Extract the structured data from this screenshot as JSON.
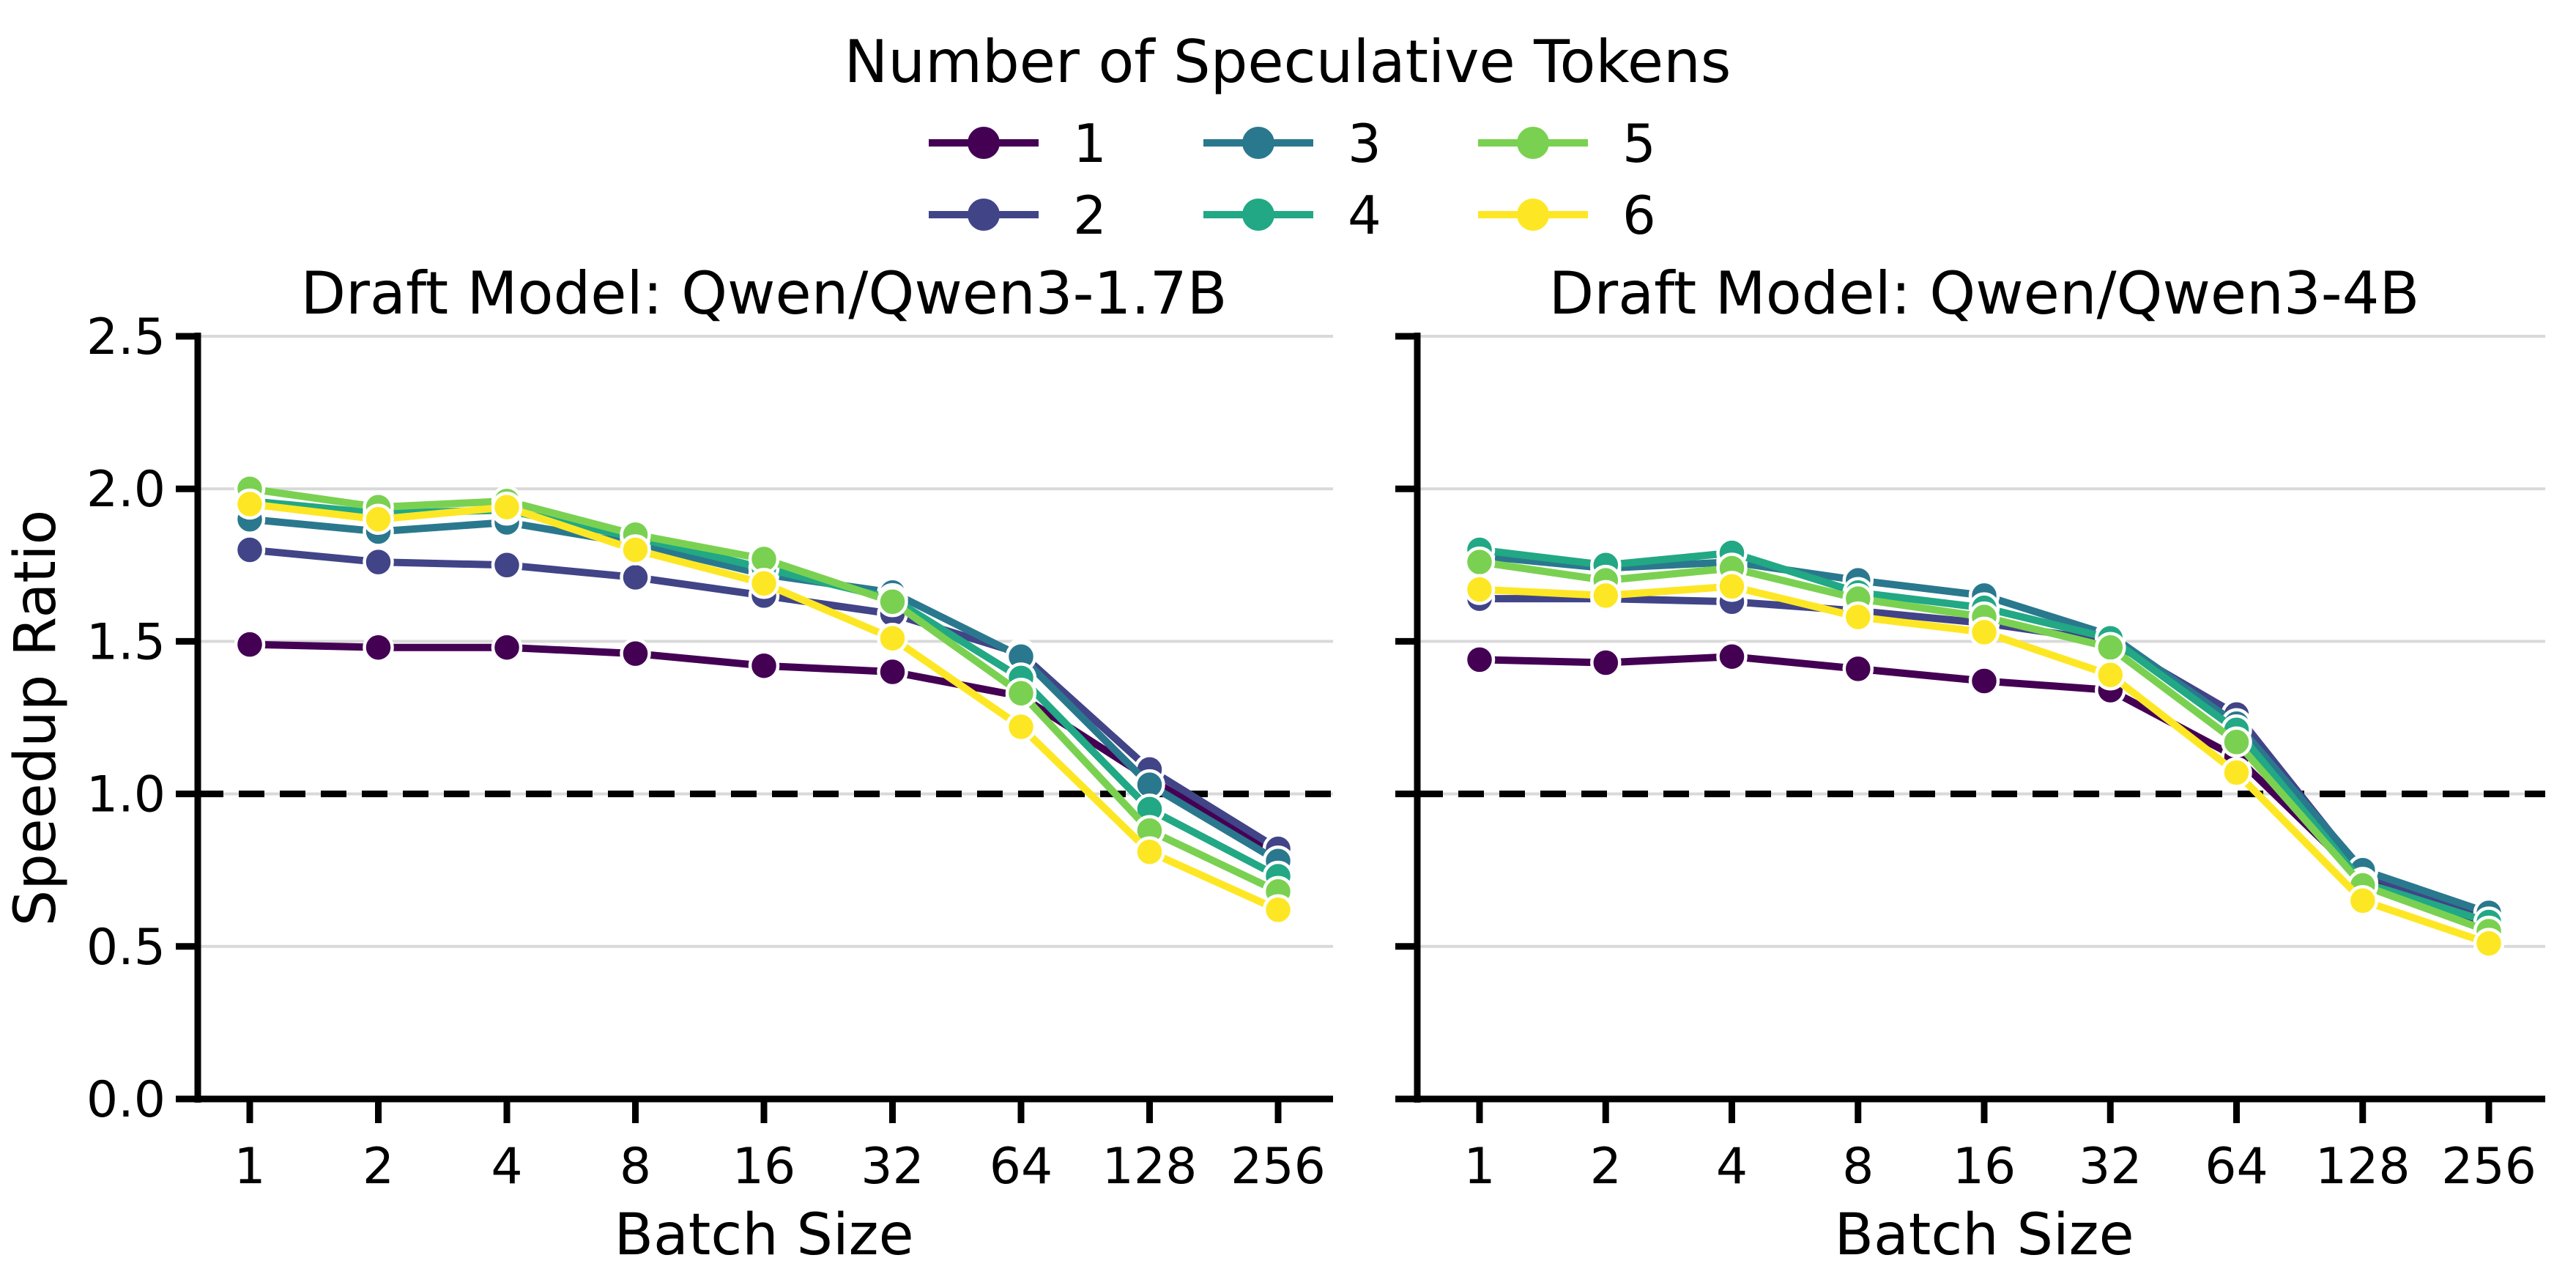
{
  "figure": {
    "background": "#ffffff",
    "text_color": "#000000",
    "grid_color": "#d9d9d9",
    "reference_line_color": "#000000",
    "legend": {
      "title": "Number of Speculative Tokens",
      "entries": [
        {
          "label": "1",
          "color": "#440154"
        },
        {
          "label": "2",
          "color": "#414487"
        },
        {
          "label": "3",
          "color": "#2a788e"
        },
        {
          "label": "4",
          "color": "#22a884"
        },
        {
          "label": "5",
          "color": "#7ad151"
        },
        {
          "label": "6",
          "color": "#fde725"
        }
      ]
    }
  },
  "chart_data": [
    {
      "type": "line",
      "title": "Draft Model: Qwen/Qwen3-1.7B",
      "xlabel": "Batch Size",
      "ylabel": "Speedup Ratio",
      "x_scale": "log2",
      "x": [
        1,
        2,
        4,
        8,
        16,
        32,
        64,
        128,
        256
      ],
      "ylim": [
        0.0,
        2.5
      ],
      "y_ticks": [
        0.0,
        0.5,
        1.0,
        1.5,
        2.0,
        2.5
      ],
      "y_tick_labels": [
        "0.0",
        "0.5",
        "1.0",
        "1.5",
        "2.0",
        "2.5"
      ],
      "grid": true,
      "reference_line_y": 1.0,
      "legend_position": "above-figure-center",
      "series": [
        {
          "name": "1",
          "color": "#440154",
          "values": [
            1.49,
            1.48,
            1.48,
            1.46,
            1.42,
            1.4,
            1.32,
            1.05,
            0.8
          ]
        },
        {
          "name": "2",
          "color": "#414487",
          "values": [
            1.8,
            1.76,
            1.75,
            1.71,
            1.65,
            1.59,
            1.46,
            1.08,
            0.82
          ]
        },
        {
          "name": "3",
          "color": "#2a788e",
          "values": [
            1.9,
            1.86,
            1.89,
            1.82,
            1.72,
            1.66,
            1.45,
            1.03,
            0.78
          ]
        },
        {
          "name": "4",
          "color": "#22a884",
          "values": [
            1.96,
            1.92,
            1.93,
            1.84,
            1.74,
            1.64,
            1.38,
            0.95,
            0.73
          ]
        },
        {
          "name": "5",
          "color": "#7ad151",
          "values": [
            2.0,
            1.94,
            1.96,
            1.85,
            1.77,
            1.63,
            1.33,
            0.88,
            0.68
          ]
        },
        {
          "name": "6",
          "color": "#fde725",
          "values": [
            1.95,
            1.9,
            1.94,
            1.8,
            1.69,
            1.51,
            1.22,
            0.81,
            0.62
          ]
        }
      ]
    },
    {
      "type": "line",
      "title": "Draft Model: Qwen/Qwen3-4B",
      "xlabel": "Batch Size",
      "ylabel": "",
      "x_scale": "log2",
      "x": [
        1,
        2,
        4,
        8,
        16,
        32,
        64,
        128,
        256
      ],
      "ylim": [
        0.0,
        2.5
      ],
      "y_ticks": [
        0.0,
        0.5,
        1.0,
        1.5,
        2.0,
        2.5
      ],
      "y_tick_labels": [],
      "grid": true,
      "reference_line_y": 1.0,
      "legend_position": "shared",
      "series": [
        {
          "name": "1",
          "color": "#440154",
          "values": [
            1.44,
            1.43,
            1.45,
            1.41,
            1.37,
            1.34,
            1.12,
            0.72,
            0.57
          ]
        },
        {
          "name": "2",
          "color": "#414487",
          "values": [
            1.64,
            1.64,
            1.63,
            1.6,
            1.56,
            1.5,
            1.26,
            0.74,
            0.59
          ]
        },
        {
          "name": "3",
          "color": "#2a788e",
          "values": [
            1.78,
            1.74,
            1.76,
            1.7,
            1.65,
            1.52,
            1.23,
            0.75,
            0.61
          ]
        },
        {
          "name": "4",
          "color": "#22a884",
          "values": [
            1.8,
            1.75,
            1.79,
            1.66,
            1.61,
            1.51,
            1.21,
            0.71,
            0.58
          ]
        },
        {
          "name": "5",
          "color": "#7ad151",
          "values": [
            1.76,
            1.7,
            1.74,
            1.64,
            1.58,
            1.48,
            1.17,
            0.7,
            0.55
          ]
        },
        {
          "name": "6",
          "color": "#fde725",
          "values": [
            1.67,
            1.65,
            1.68,
            1.58,
            1.53,
            1.39,
            1.07,
            0.65,
            0.51
          ]
        }
      ]
    }
  ]
}
